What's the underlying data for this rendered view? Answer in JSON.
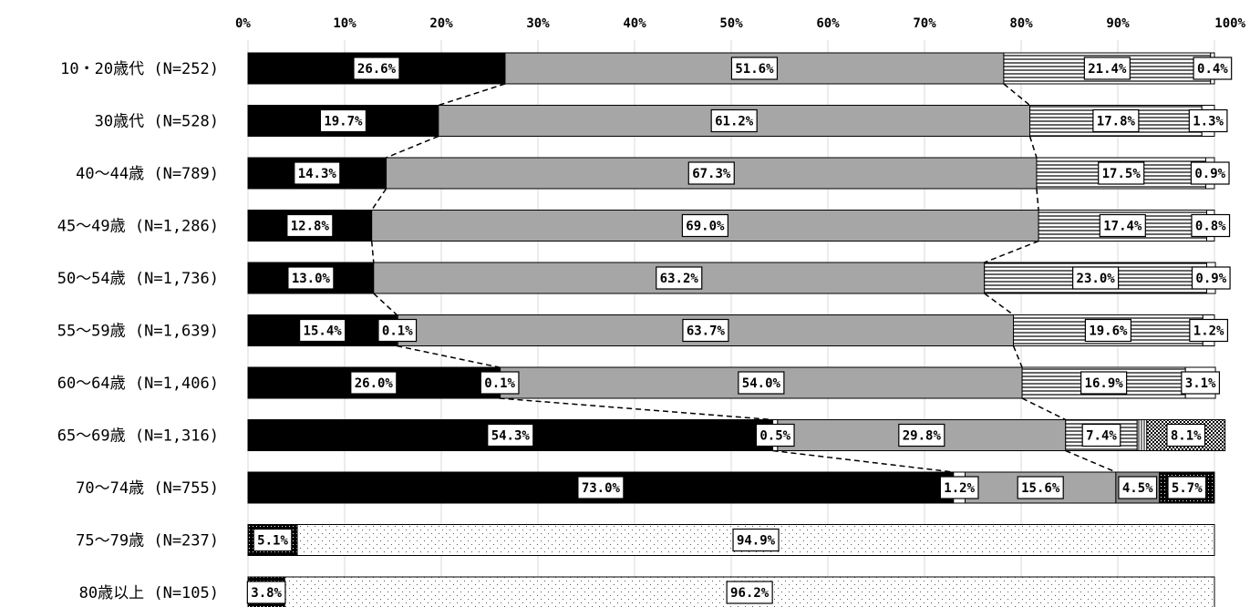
{
  "chart_data": {
    "type": "bar",
    "orientation": "horizontal",
    "stacked": "percent",
    "xlim": [
      0,
      100
    ],
    "x_ticks": [
      "0%",
      "10%",
      "20%",
      "30%",
      "40%",
      "50%",
      "60%",
      "70%",
      "80%",
      "90%",
      "100%"
    ],
    "grid": true,
    "legend": "none",
    "categories": [
      "10・20歳代 (N=252)",
      "30歳代 (N=528)",
      "40～44歳 (N=789)",
      "45～49歳 (N=1,286)",
      "50～54歳 (N=1,736)",
      "55～59歳 (N=1,639)",
      "60～64歳 (N=1,406)",
      "65～69歳 (N=1,316)",
      "70～74歳 (N=755)",
      "75～79歳 (N=237)",
      "80歳以上 (N=105)"
    ],
    "series": [
      {
        "fill": "black",
        "values": [
          26.6,
          19.7,
          14.3,
          12.8,
          13.0,
          15.4,
          26.0,
          54.3,
          73.0,
          0,
          0
        ],
        "labels": [
          "26.6%",
          "19.7%",
          "14.3%",
          "12.8%",
          "13.0%",
          "15.4%",
          "26.0%",
          "54.3%",
          "73.0%",
          "",
          ""
        ]
      },
      {
        "fill": "white",
        "values": [
          0,
          0,
          0,
          0,
          0,
          0.1,
          0.1,
          0.5,
          1.2,
          0,
          0
        ],
        "labels": [
          "",
          "",
          "",
          "",
          "",
          "0.1%",
          "0.1%",
          "0.5%",
          "1.2%",
          "",
          ""
        ]
      },
      {
        "fill": "gray",
        "values": [
          51.6,
          61.2,
          67.3,
          69.0,
          63.2,
          63.7,
          54.0,
          29.8,
          15.6,
          0,
          0
        ],
        "labels": [
          "51.6%",
          "61.2%",
          "67.3%",
          "69.0%",
          "63.2%",
          "63.7%",
          "54.0%",
          "29.8%",
          "15.6%",
          "",
          ""
        ]
      },
      {
        "fill": "dark-gray",
        "values": [
          0,
          0,
          0,
          0,
          0,
          0,
          0,
          0,
          4.5,
          0,
          0
        ],
        "labels": [
          "",
          "",
          "",
          "",
          "",
          "",
          "",
          "",
          "4.5%",
          "",
          ""
        ]
      },
      {
        "fill": "horizontal-lines",
        "values": [
          21.4,
          17.8,
          17.5,
          17.4,
          23.0,
          19.6,
          16.9,
          7.4,
          0,
          0,
          0
        ],
        "labels": [
          "21.4%",
          "17.8%",
          "17.5%",
          "17.4%",
          "23.0%",
          "19.6%",
          "16.9%",
          "7.4%",
          "",
          "",
          ""
        ]
      },
      {
        "fill": "vertical-lines",
        "values": [
          0,
          0,
          0,
          0,
          0,
          0,
          0,
          1.0,
          0,
          0,
          0
        ],
        "labels": [
          "",
          "",
          "",
          "",
          "",
          "",
          "",
          "",
          "",
          "",
          ""
        ]
      },
      {
        "fill": "checkered",
        "values": [
          0,
          0,
          0,
          0,
          0,
          0,
          0,
          8.1,
          0,
          0,
          0
        ],
        "labels": [
          "",
          "",
          "",
          "",
          "",
          "",
          "",
          "8.1%",
          "",
          "",
          ""
        ]
      },
      {
        "fill": "black-dotted",
        "values": [
          0,
          0,
          0,
          0,
          0,
          0,
          0,
          0,
          5.7,
          5.1,
          3.8
        ],
        "labels": [
          "",
          "",
          "",
          "",
          "",
          "",
          "",
          "",
          "5.7%",
          "5.1%",
          "3.8%"
        ]
      },
      {
        "fill": "white-dotted",
        "values": [
          0,
          0,
          0,
          0,
          0,
          0,
          0,
          0,
          0,
          94.9,
          96.2
        ],
        "labels": [
          "",
          "",
          "",
          "",
          "",
          "",
          "",
          "",
          "",
          "94.9%",
          "96.2%"
        ]
      },
      {
        "fill": "white",
        "values": [
          0.4,
          1.3,
          0.9,
          0.8,
          0.9,
          1.2,
          3.1,
          0,
          0,
          0,
          0
        ],
        "labels": [
          "0.4%",
          "1.3%",
          "0.9%",
          "0.8%",
          "0.9%",
          "1.2%",
          "3.1%",
          "",
          "",
          "",
          ""
        ]
      }
    ],
    "colors": {
      "black": "#000000",
      "gray": "#a6a6a6",
      "dark-gray": "#8c8c8c",
      "white": "#ffffff",
      "line": "#000000",
      "grid": "#d9d9d9"
    }
  }
}
